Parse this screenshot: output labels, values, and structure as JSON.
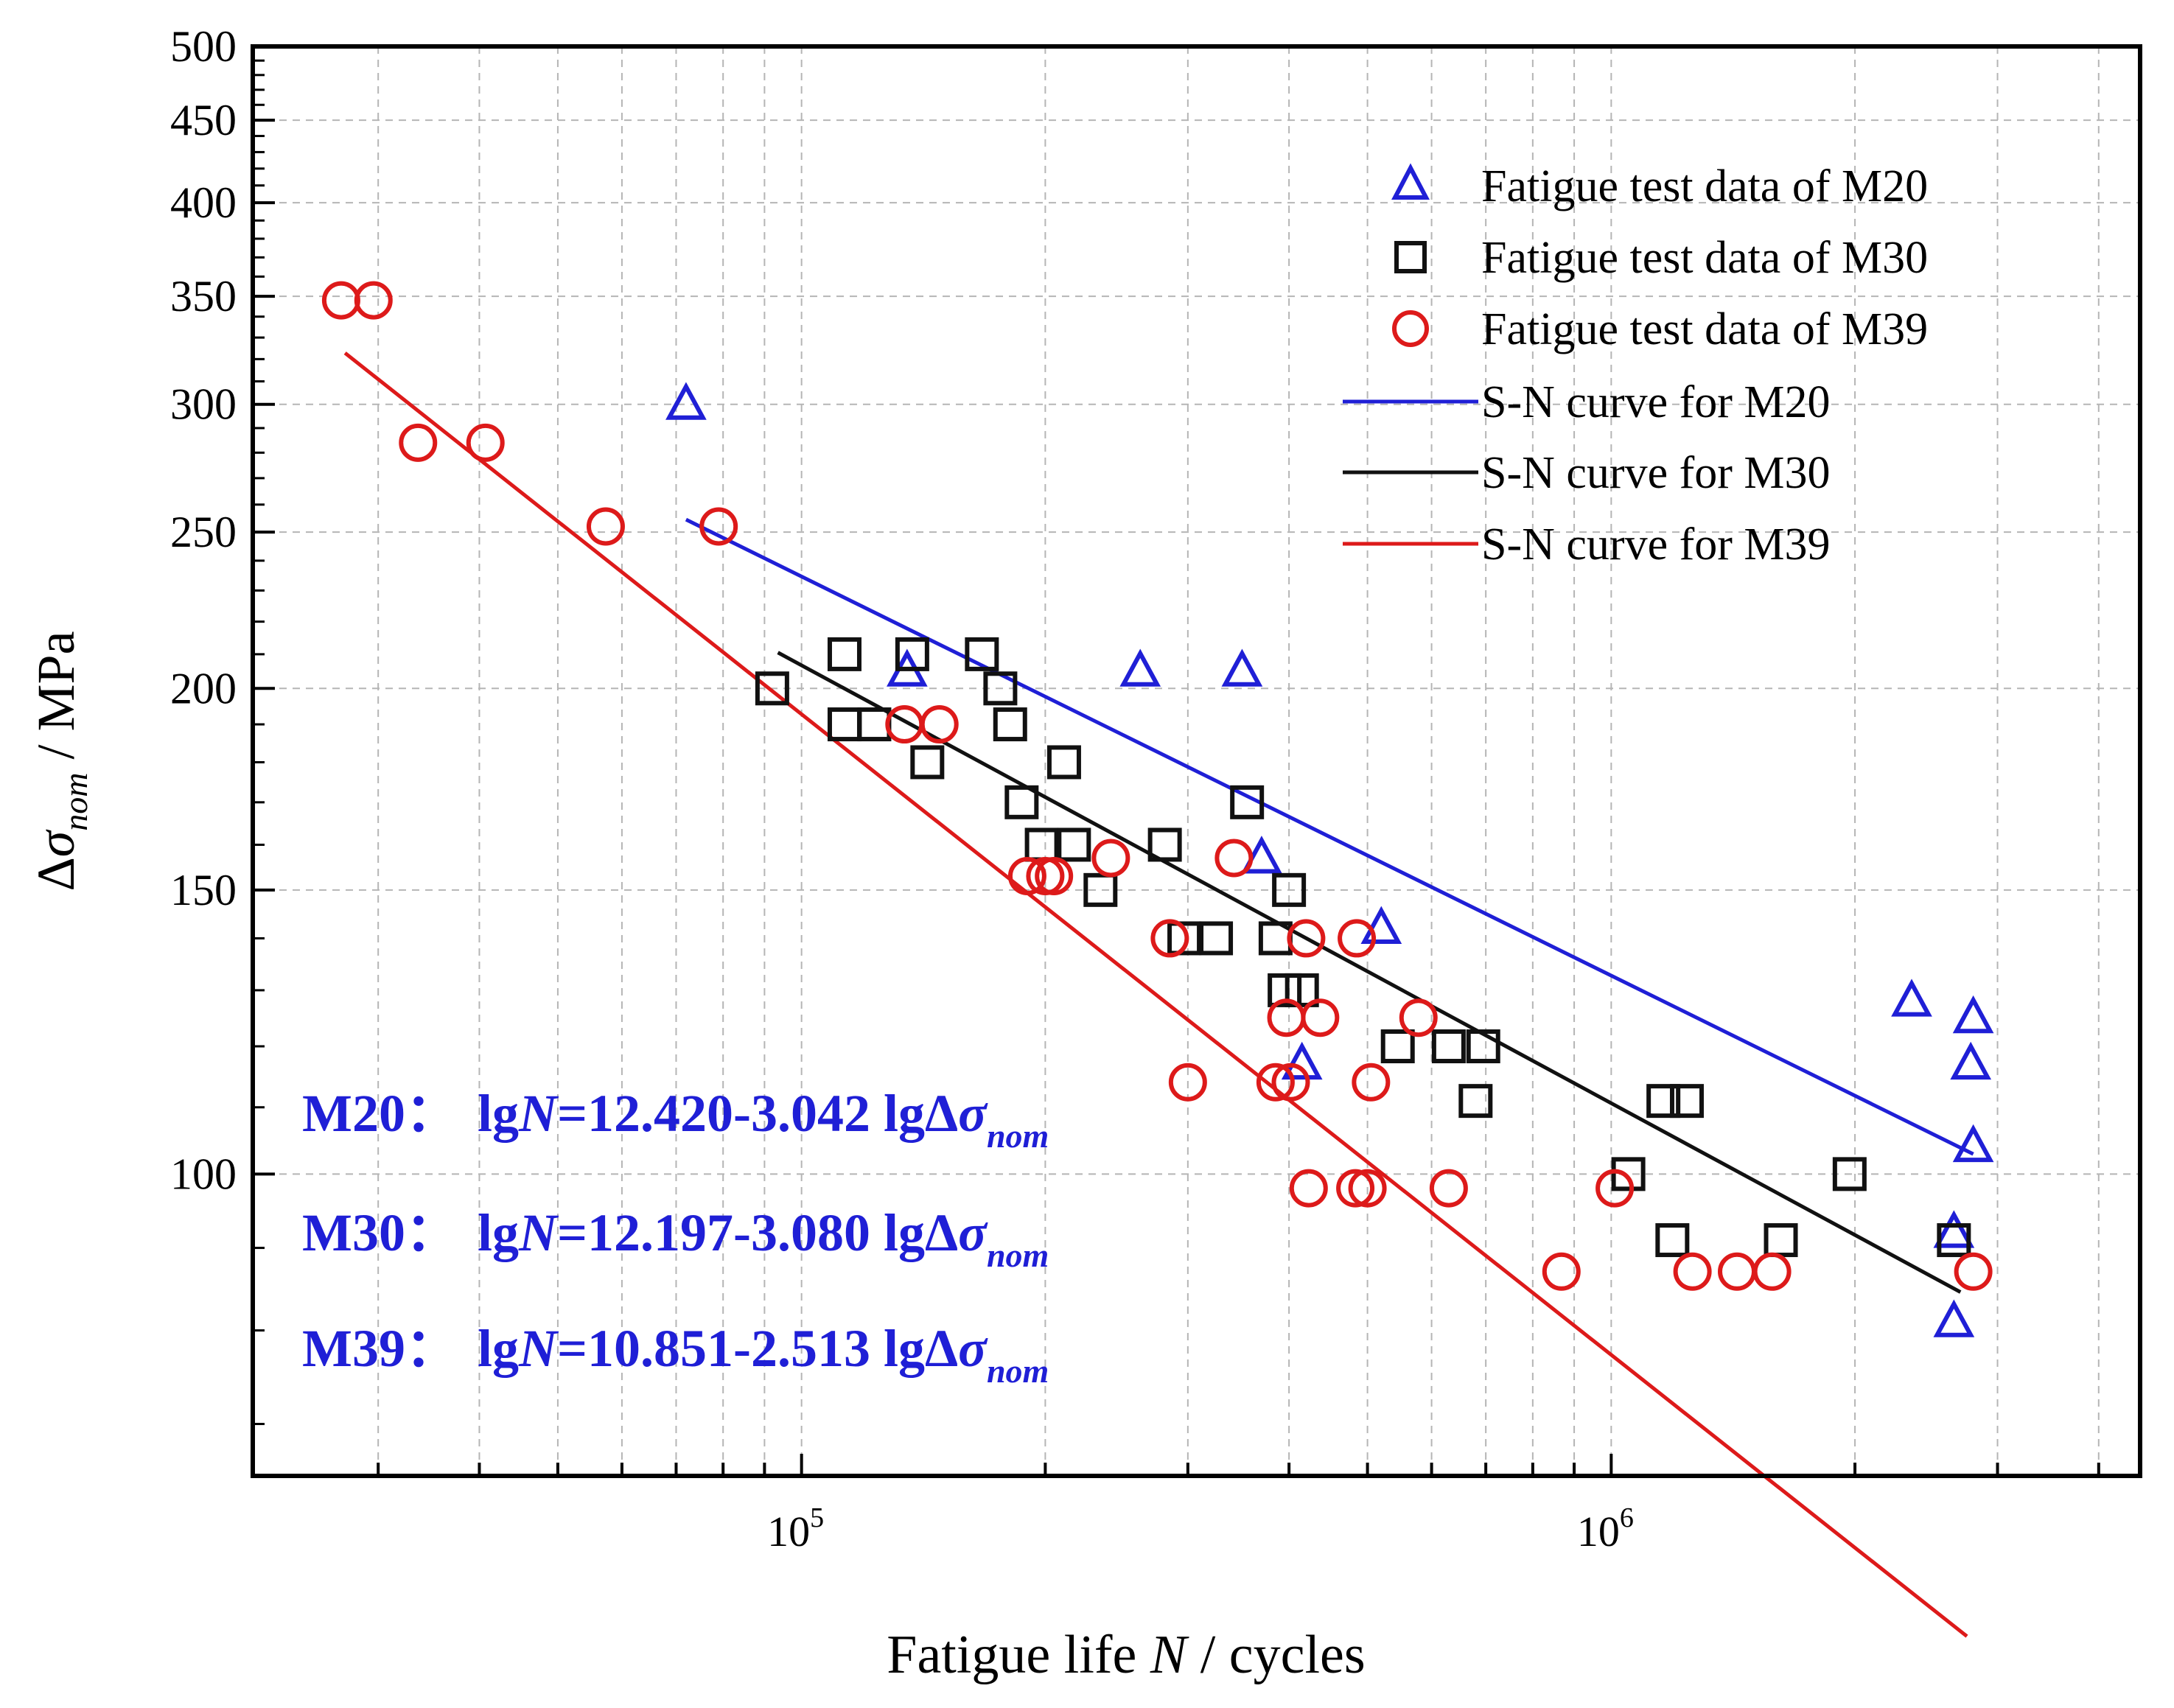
{
  "chart_data": {
    "type": "scatter",
    "title": "",
    "xlabel": {
      "main": "Fatigue life ",
      "var": "N",
      "rest": " / cycles"
    },
    "ylabel": {
      "delta": "Δ",
      "sigma": "σ",
      "sub": "nom",
      "rest": " / MPa"
    },
    "xscale": "log",
    "yscale": "log",
    "xlim": [
      21000,
      4500000
    ],
    "ylim": [
      65,
      500
    ],
    "grid": true,
    "x_major_ticks": [
      {
        "value": 100000,
        "base": "10",
        "exp": "5"
      },
      {
        "value": 1000000,
        "base": "10",
        "exp": "6"
      }
    ],
    "y_ticks": [
      {
        "value": 100,
        "label": "100"
      },
      {
        "value": 150,
        "label": "150"
      },
      {
        "value": 200,
        "label": "200"
      },
      {
        "value": 250,
        "label": "250"
      },
      {
        "value": 300,
        "label": "300"
      },
      {
        "value": 350,
        "label": "350"
      },
      {
        "value": 400,
        "label": "400"
      },
      {
        "value": 450,
        "label": "450"
      },
      {
        "value": 500,
        "label": "500"
      }
    ],
    "legend_position": "top-right",
    "series": [
      {
        "name": "Fatigue test data of M20",
        "marker": "triangle",
        "color": "#1f1fd6",
        "points": [
          [
            72000,
            300
          ],
          [
            135000,
            205
          ],
          [
            262000,
            205
          ],
          [
            350000,
            205
          ],
          [
            370000,
            157
          ],
          [
            415000,
            117
          ],
          [
            520000,
            142
          ],
          [
            2350000,
            128
          ],
          [
            2800000,
            125
          ],
          [
            2780000,
            117
          ],
          [
            2800000,
            104
          ],
          [
            2650000,
            92
          ],
          [
            2650000,
            81
          ]
        ]
      },
      {
        "name": "Fatigue test data of M30",
        "marker": "square",
        "color": "#111111",
        "points": [
          [
            92000,
            200
          ],
          [
            113000,
            210
          ],
          [
            113000,
            190
          ],
          [
            123000,
            190
          ],
          [
            137000,
            210
          ],
          [
            143000,
            180
          ],
          [
            167000,
            210
          ],
          [
            176000,
            200
          ],
          [
            181000,
            190
          ],
          [
            187000,
            170
          ],
          [
            198000,
            160
          ],
          [
            211000,
            180
          ],
          [
            217000,
            160
          ],
          [
            234000,
            150
          ],
          [
            281000,
            160
          ],
          [
            297000,
            140
          ],
          [
            325000,
            140
          ],
          [
            355000,
            170
          ],
          [
            385000,
            140
          ],
          [
            395000,
            130
          ],
          [
            400000,
            150
          ],
          [
            415000,
            130
          ],
          [
            545000,
            120
          ],
          [
            630000,
            120
          ],
          [
            680000,
            111
          ],
          [
            695000,
            120
          ],
          [
            1050000,
            100
          ],
          [
            1160000,
            111
          ],
          [
            1240000,
            111
          ],
          [
            1190000,
            91
          ],
          [
            1620000,
            91
          ],
          [
            1970000,
            100
          ],
          [
            2650000,
            91
          ]
        ]
      },
      {
        "name": "Fatigue test data of  M39",
        "marker": "circle",
        "color": "#dd1a1a",
        "points": [
          [
            27000,
            348
          ],
          [
            29600,
            348
          ],
          [
            33600,
            284
          ],
          [
            40700,
            284
          ],
          [
            57300,
            252
          ],
          [
            79000,
            252
          ],
          [
            134000,
            190
          ],
          [
            148000,
            190
          ],
          [
            190000,
            153
          ],
          [
            200000,
            153
          ],
          [
            205000,
            153
          ],
          [
            241000,
            157
          ],
          [
            285000,
            140
          ],
          [
            300000,
            114
          ],
          [
            342000,
            157
          ],
          [
            385000,
            114
          ],
          [
            397000,
            125
          ],
          [
            402000,
            114
          ],
          [
            420000,
            140
          ],
          [
            423000,
            98
          ],
          [
            437000,
            125
          ],
          [
            483000,
            98
          ],
          [
            485000,
            140
          ],
          [
            500000,
            98
          ],
          [
            505000,
            114
          ],
          [
            578000,
            125
          ],
          [
            630000,
            98
          ],
          [
            1010000,
            98
          ],
          [
            868000,
            87
          ],
          [
            1260000,
            87
          ],
          [
            1430000,
            87
          ],
          [
            1580000,
            87
          ],
          [
            2800000,
            87
          ]
        ]
      },
      {
        "name": "S-N curve for M20",
        "marker": "line",
        "color": "#1f1fd6",
        "line": [
          [
            72000,
            254.5
          ],
          [
            2800000,
            102.9
          ]
        ]
      },
      {
        "name": "S-N curve for M30",
        "marker": "line",
        "color": "#111111",
        "line": [
          [
            93500,
            210.5
          ],
          [
            2700000,
            84.5
          ]
        ]
      },
      {
        "name": "S-N curve for M39",
        "marker": "line",
        "color": "#dd1a1a",
        "line": [
          [
            27300,
            322.8
          ],
          [
            2750000,
            51.7
          ]
        ]
      }
    ],
    "annotations": [
      {
        "id": "m20",
        "label": "M20：",
        "lg": "lg",
        "n": "N",
        "eq": "=12.420-3.042 lg",
        "delta": "Δ",
        "sigma": "σ",
        "sub": "nom",
        "color": "#1f1fd6"
      },
      {
        "id": "m30",
        "label": "M30：",
        "lg": "lg",
        "n": "N",
        "eq": "=12.197-3.080 lg",
        "delta": "Δ",
        "sigma": "σ",
        "sub": "nom",
        "color": "#1f1fd6"
      },
      {
        "id": "m39",
        "label": "M39：",
        "lg": "lg",
        "n": "N",
        "eq": "=10.851-2.513 lg",
        "delta": "Δ",
        "sigma": "σ",
        "sub": "nom",
        "color": "#1f1fd6"
      }
    ]
  }
}
